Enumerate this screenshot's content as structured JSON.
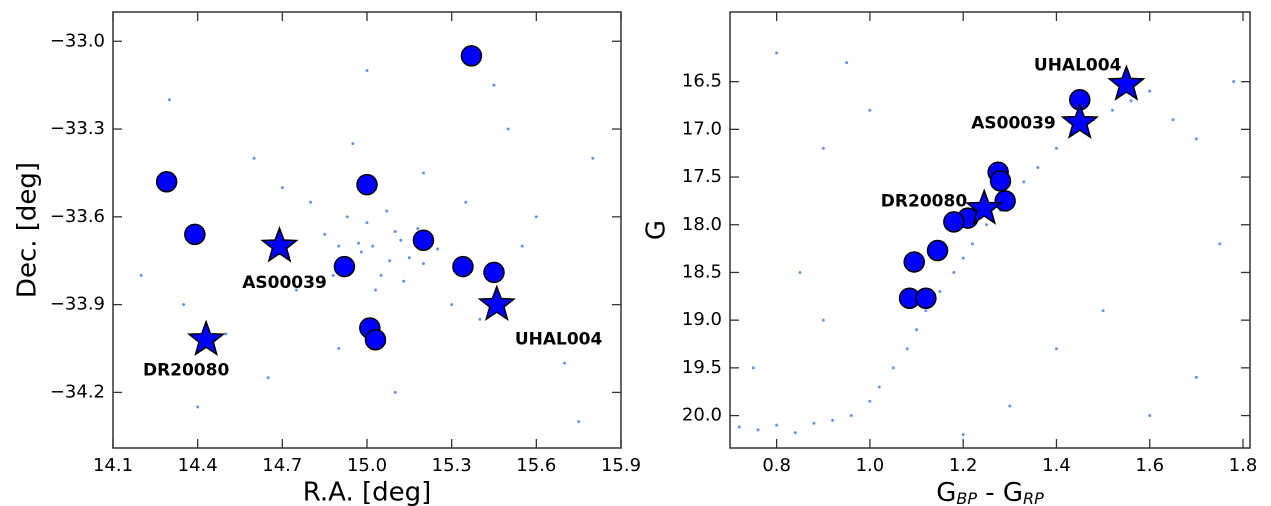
{
  "chart_data": [
    {
      "type": "scatter",
      "x_label": "R.A. [deg]",
      "y_label": "Dec. [deg]",
      "xlim": [
        14.1,
        15.9
      ],
      "ylim": [
        -34.39,
        -32.9
      ],
      "xticks": [
        14.1,
        14.4,
        14.7,
        {
          "value": 15,
          "label": "15.0"
        },
        15.3,
        15.6,
        15.9
      ],
      "yticks": [
        {
          "value": -33,
          "label": "−33.0"
        },
        {
          "value": -33.3,
          "label": "−33.3"
        },
        {
          "value": -33.6,
          "label": "−33.6"
        },
        {
          "value": -33.9,
          "label": "−33.9"
        },
        {
          "value": -34.2,
          "label": "−34.2"
        }
      ],
      "series": [
        {
          "marker": "dot",
          "color": "#6495ed",
          "x": [
            14.98,
            15.02,
            15.08,
            15.12,
            14.95,
            15.1,
            15.05,
            15.0,
            15.15,
            14.9,
            15.2,
            14.85,
            15.25,
            15.03,
            15.07,
            14.97,
            15.13,
            14.93,
            15.18,
            14.88,
            14.8,
            15.3,
            14.75,
            15.35,
            14.7,
            15.4,
            14.6,
            15.5,
            14.5,
            15.6,
            14.3,
            15.7,
            14.2,
            15.8,
            14.4,
            15.45,
            14.65,
            15.55,
            14.35,
            15.75,
            15.0,
            15.1,
            14.95,
            15.2,
            14.9
          ],
          "values": [
            -33.72,
            -33.7,
            -33.75,
            -33.68,
            -33.78,
            -33.65,
            -33.8,
            -33.62,
            -33.74,
            -33.7,
            -33.76,
            -33.66,
            -33.71,
            -33.85,
            -33.58,
            -33.69,
            -33.82,
            -33.6,
            -33.64,
            -33.8,
            -33.55,
            -33.9,
            -33.85,
            -33.55,
            -33.5,
            -33.95,
            -33.4,
            -33.3,
            -34.0,
            -33.6,
            -33.2,
            -34.1,
            -33.8,
            -33.4,
            -34.25,
            -33.15,
            -34.15,
            -33.7,
            -33.9,
            -34.3,
            -33.1,
            -34.2,
            -33.35,
            -33.45,
            -34.05
          ]
        },
        {
          "marker": "circle",
          "color": "#0000ff",
          "x": [
            15.37,
            14.29,
            15.0,
            14.39,
            15.2,
            14.92,
            15.34,
            15.45,
            15.01,
            15.03
          ],
          "values": [
            -33.05,
            -33.48,
            -33.49,
            -33.66,
            -33.68,
            -33.77,
            -33.77,
            -33.79,
            -33.98,
            -34.02
          ]
        },
        {
          "marker": "star",
          "color": "#0000ff",
          "x": [
            14.69,
            15.46,
            14.43
          ],
          "values": [
            -33.7,
            -33.9,
            -34.02
          ],
          "labels": [
            "AS00039",
            "UHAL004",
            "DR20080"
          ]
        }
      ]
    },
    {
      "type": "scatter",
      "x_label": [
        "G",
        "BP",
        " - G",
        "RP"
      ],
      "y_label": "G",
      "y_inverted": true,
      "xlim": [
        0.7,
        1.815
      ],
      "ylim": [
        20.34,
        15.77
      ],
      "xticks": [
        0.8,
        {
          "value": 1,
          "label": "1.0"
        },
        1.2,
        1.4,
        1.6,
        1.8
      ],
      "yticks": [
        16.5,
        {
          "value": 17,
          "label": "17.0"
        },
        17.5,
        {
          "value": 18,
          "label": "18.0"
        },
        18.5,
        {
          "value": 19,
          "label": "19.0"
        },
        19.5,
        {
          "value": 20,
          "label": "20.0"
        }
      ],
      "series": [
        {
          "marker": "dot",
          "color": "#6495ed",
          "x": [
            0.72,
            0.76,
            0.8,
            0.84,
            0.88,
            0.92,
            0.96,
            1.0,
            1.02,
            1.05,
            1.08,
            1.1,
            1.12,
            1.15,
            1.18,
            1.2,
            1.22,
            1.25,
            1.28,
            1.3,
            1.33,
            1.36,
            1.4,
            1.44,
            1.48,
            1.52,
            1.56,
            1.6,
            1.65,
            1.7,
            0.75,
            0.85,
            0.9,
            0.95,
            1.3,
            1.5,
            1.7,
            1.75,
            0.8,
            1.6,
            1.0,
            1.4,
            1.2,
            1.78,
            0.9
          ],
          "values": [
            20.12,
            20.15,
            20.1,
            20.18,
            20.08,
            20.05,
            20.0,
            19.85,
            19.7,
            19.5,
            19.3,
            19.1,
            18.9,
            18.7,
            18.5,
            18.35,
            18.2,
            18.0,
            17.85,
            17.7,
            17.55,
            17.4,
            17.2,
            17.0,
            16.9,
            16.8,
            16.7,
            16.6,
            16.9,
            17.1,
            19.5,
            18.5,
            17.2,
            16.3,
            19.9,
            18.9,
            19.6,
            18.2,
            16.2,
            20.0,
            16.8,
            19.3,
            20.2,
            16.5,
            19.0
          ]
        },
        {
          "marker": "circle",
          "color": "#0000ff",
          "x": [
            1.45,
            1.275,
            1.28,
            1.29,
            1.21,
            1.18,
            1.145,
            1.095,
            1.085,
            1.12
          ],
          "values": [
            16.69,
            17.45,
            17.54,
            17.75,
            17.93,
            17.97,
            18.27,
            18.39,
            18.77,
            18.77
          ]
        },
        {
          "marker": "star",
          "color": "#0000ff",
          "x": [
            1.55,
            1.45,
            1.245
          ],
          "values": [
            16.53,
            16.93,
            17.83
          ],
          "labels": [
            "UHAL004",
            "AS00039",
            "DR20080"
          ]
        }
      ]
    }
  ]
}
